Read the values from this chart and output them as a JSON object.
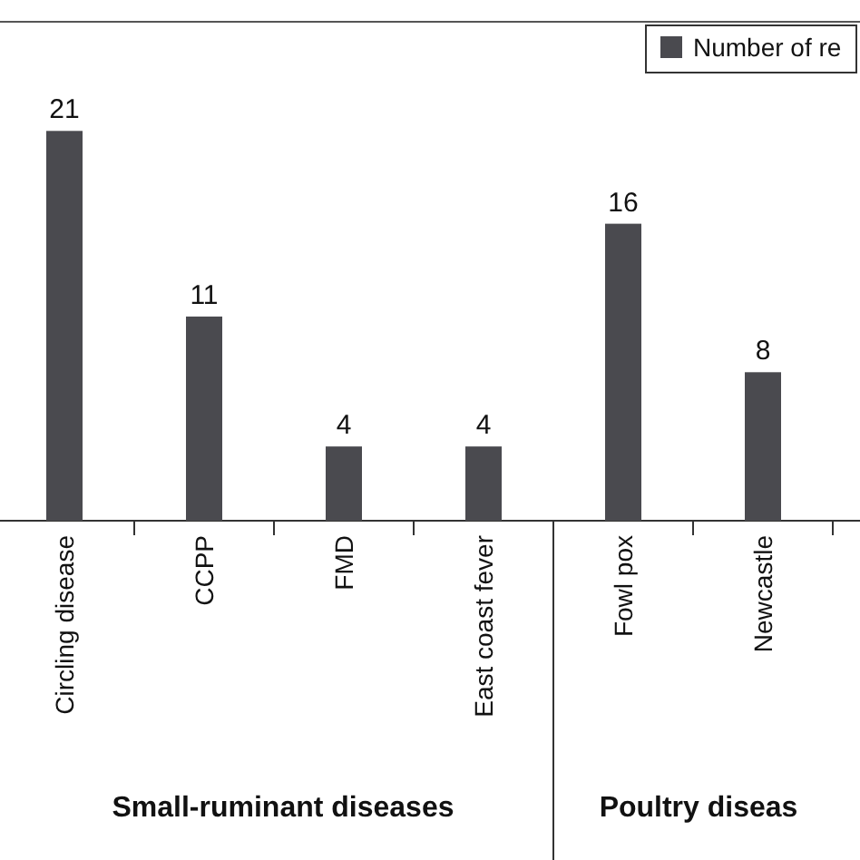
{
  "chart_data": {
    "type": "bar",
    "categories": [
      "Circling disease",
      "CCPP",
      "FMD",
      "East coast fever",
      "Fowl pox",
      "Newcastle"
    ],
    "series": [
      {
        "name": "Number of re",
        "color": "#4a4a4f",
        "values": [
          21,
          11,
          4,
          4,
          16,
          8
        ]
      }
    ],
    "data_labels": true,
    "legend": "top right",
    "annotations": [
      "Small-ruminant diseases",
      "Poultry diseas"
    ]
  }
}
